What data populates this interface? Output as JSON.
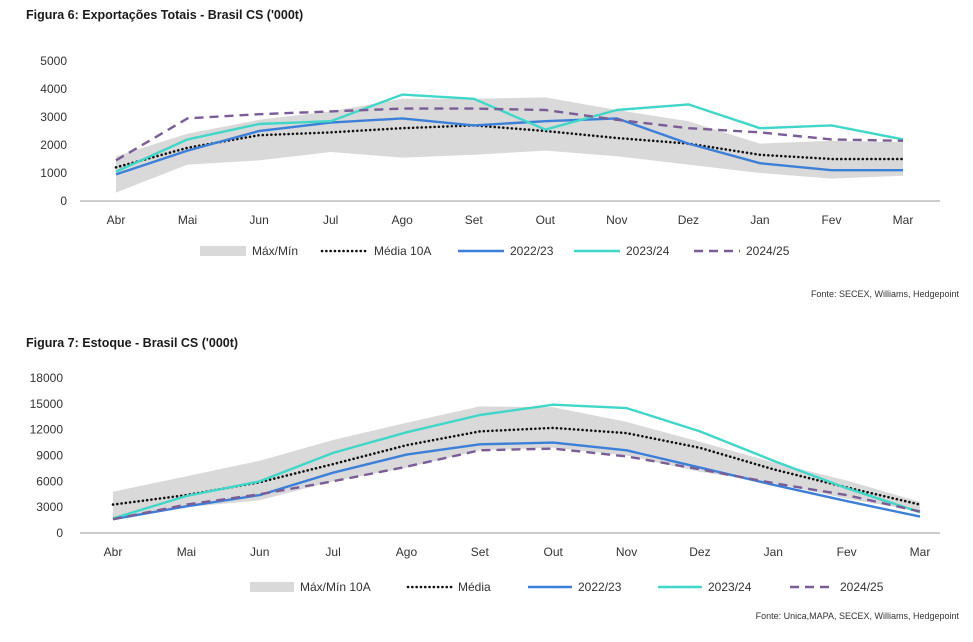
{
  "colors": {
    "band": "#d9d9d9",
    "media": "#111111",
    "s2022": "#3c7fd9",
    "s2023": "#40d6c8",
    "s2024": "#7a5c96"
  },
  "figure1": {
    "title": "Figura 6: Exportações Totais - Brasil CS ('000t)",
    "source": "Fonte: SECEX, Williams, Hedgepoint"
  },
  "figure2": {
    "title": "Figura 7: Estoque - Brasil CS ('000t)",
    "source": "Fonte: Unica,MAPA, SECEX, Williams, Hedgepoint"
  },
  "chart_data": [
    {
      "type": "line",
      "title": "Figura 6: Exportações Totais - Brasil CS ('000t)",
      "categories": [
        "Abr",
        "Mai",
        "Jun",
        "Jul",
        "Ago",
        "Set",
        "Out",
        "Nov",
        "Dez",
        "Jan",
        "Fev",
        "Mar"
      ],
      "ylim": [
        0,
        5000
      ],
      "yticks": [
        "0",
        "1000",
        "2000",
        "3000",
        "4000",
        "5000"
      ],
      "grid": false,
      "legend_position": "bottom",
      "band": {
        "name": "Máx/Mín",
        "max": [
          1600,
          2400,
          2900,
          3200,
          3650,
          3650,
          3700,
          3250,
          2850,
          2050,
          2150,
          2100
        ],
        "min": [
          300,
          1300,
          1450,
          1750,
          1550,
          1650,
          1800,
          1600,
          1300,
          1000,
          800,
          900
        ]
      },
      "series": [
        {
          "name": "Média 10A",
          "style": "dotted",
          "values": [
            1200,
            1900,
            2350,
            2450,
            2600,
            2700,
            2500,
            2250,
            2050,
            1650,
            1500,
            1500
          ]
        },
        {
          "name": "2022/23",
          "style": "solid",
          "values": [
            950,
            1800,
            2500,
            2800,
            2950,
            2700,
            2850,
            2950,
            2050,
            1350,
            1100,
            1100
          ]
        },
        {
          "name": "2023/24",
          "style": "solid",
          "values": [
            1050,
            2200,
            2750,
            2850,
            3800,
            3650,
            2550,
            3250,
            3450,
            2600,
            2700,
            2200
          ]
        },
        {
          "name": "2024/25",
          "style": "dashed",
          "values": [
            1450,
            2950,
            3100,
            3200,
            3300,
            3300,
            3250,
            2900,
            2600,
            2450,
            2200,
            2150
          ]
        }
      ]
    },
    {
      "type": "line",
      "title": "Figura 7: Estoque - Brasil CS ('000t)",
      "categories": [
        "Abr",
        "Mai",
        "Jun",
        "Jul",
        "Ago",
        "Set",
        "Out",
        "Nov",
        "Dez",
        "Jan",
        "Fev",
        "Mar"
      ],
      "ylim": [
        0,
        18000
      ],
      "yticks": [
        "0",
        "3000",
        "6000",
        "9000",
        "12000",
        "15000",
        "18000"
      ],
      "grid": false,
      "legend_position": "bottom",
      "band": {
        "name": "Máx/Mín 10A",
        "max": [
          4800,
          6600,
          8400,
          10800,
          12800,
          14700,
          14600,
          12900,
          10600,
          8200,
          6100,
          3600
        ],
        "min": [
          1700,
          3000,
          3800,
          6000,
          7600,
          9600,
          9900,
          9000,
          7100,
          5800,
          4000,
          2500
        ]
      },
      "series": [
        {
          "name": "Média",
          "style": "dotted",
          "values": [
            3300,
            4400,
            5900,
            8000,
            10200,
            11800,
            12200,
            11600,
            9900,
            7400,
            5300,
            3300
          ]
        },
        {
          "name": "2022/23",
          "style": "solid",
          "values": [
            1600,
            3100,
            4400,
            7000,
            9100,
            10300,
            10500,
            9600,
            7600,
            5600,
            3700,
            1900
          ]
        },
        {
          "name": "2023/24",
          "style": "solid",
          "values": [
            1700,
            4300,
            6000,
            9300,
            11700,
            13700,
            14900,
            14500,
            11800,
            8400,
            5200,
            2400
          ]
        },
        {
          "name": "2024/25",
          "style": "dashed",
          "values": [
            1600,
            3300,
            4500,
            6000,
            7700,
            9600,
            9800,
            8900,
            7400,
            5800,
            4400,
            2500
          ]
        }
      ]
    }
  ]
}
